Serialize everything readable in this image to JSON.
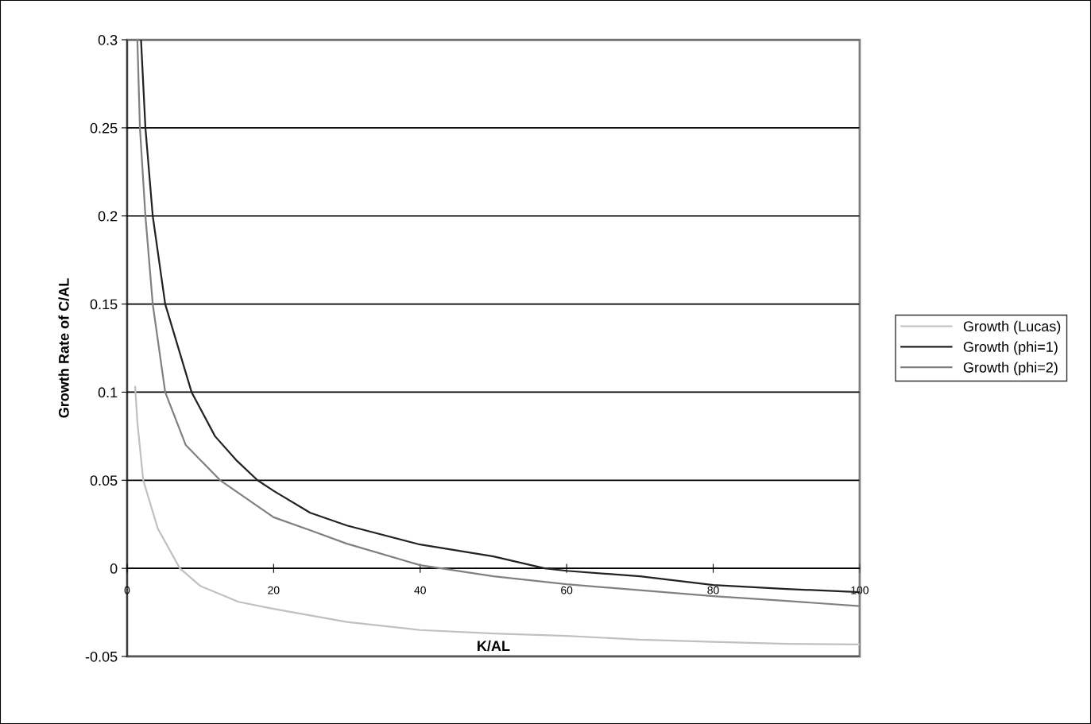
{
  "chart_data": {
    "type": "line",
    "xlabel": "K/AL",
    "ylabel": "Growth Rate of C/AL",
    "xlim": [
      0,
      100
    ],
    "xticks": [
      0,
      20,
      40,
      60,
      80,
      100
    ],
    "ylim": [
      -0.05,
      0.3
    ],
    "yticks": [
      -0.05,
      0,
      0.05,
      0.1,
      0.15,
      0.2,
      0.25,
      0.3
    ],
    "grid": "y",
    "legend": "right",
    "marker": "none",
    "line_style": "solid",
    "series": [
      {
        "name": "Growth (Lucas)",
        "color": "#c0c0c0",
        "x": [
          1.1,
          1.4,
          2.2,
          4.2,
          7.2,
          10,
          15.2,
          20,
          30,
          40,
          50,
          60,
          70,
          80,
          90,
          100
        ],
        "values": [
          0.103,
          0.083,
          0.05,
          0.0225,
          0,
          -0.01,
          -0.019,
          -0.023,
          -0.0304,
          -0.035,
          -0.037,
          -0.0383,
          -0.0405,
          -0.0417,
          -0.0428,
          -0.0432
        ]
      },
      {
        "name": "Growth (phi=1)",
        "color": "#222222",
        "x": [
          1.9,
          2.5,
          3.5,
          5.2,
          8.8,
          12,
          15,
          17.8,
          20,
          25,
          30,
          40,
          50,
          57,
          60,
          70,
          80,
          90,
          100
        ],
        "values": [
          0.3,
          0.25,
          0.2,
          0.15,
          0.1,
          0.075,
          0.061,
          0.05,
          0.044,
          0.0315,
          0.0243,
          0.0135,
          0.0068,
          0,
          -0.0014,
          -0.0045,
          -0.0095,
          -0.0117,
          -0.0135
        ]
      },
      {
        "name": "Growth (phi=2)",
        "color": "#808080",
        "x": [
          1.4,
          1.75,
          2.5,
          3.5,
          5.2,
          8,
          12.7,
          20,
          25,
          30,
          40,
          50,
          60,
          70,
          80,
          90,
          100
        ],
        "values": [
          0.3,
          0.25,
          0.2,
          0.15,
          0.1,
          0.07,
          0.05,
          0.029,
          0.0216,
          0.014,
          0.0018,
          -0.0045,
          -0.009,
          -0.0124,
          -0.0158,
          -0.0185,
          -0.0214
        ]
      }
    ]
  }
}
